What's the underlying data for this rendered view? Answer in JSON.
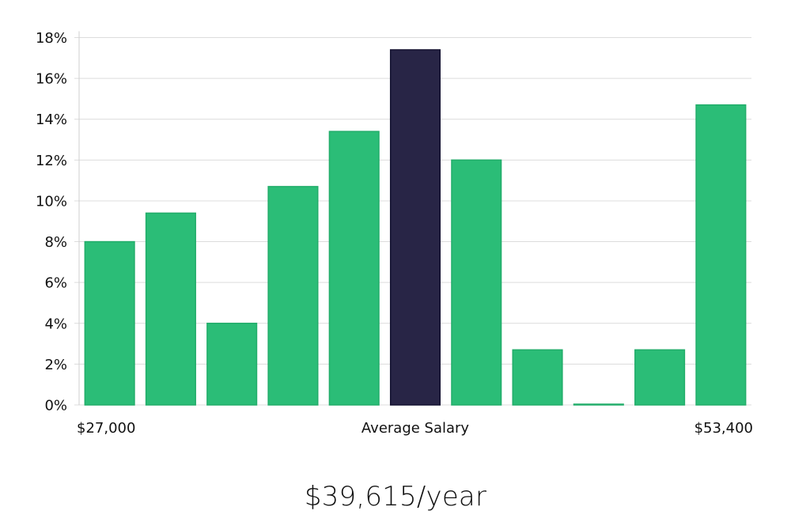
{
  "headline": "$39,615/year",
  "colors": {
    "bar": "#2bbd77",
    "bar_stroke": "#22ad6a",
    "highlight": "#282546",
    "highlight_stroke": "#141230"
  },
  "chart_data": {
    "type": "bar",
    "values": [
      8.0,
      9.4,
      4.0,
      10.7,
      13.4,
      17.4,
      12.0,
      2.7,
      0.0,
      2.7,
      14.7
    ],
    "highlight_index": 5,
    "ylim": [
      0,
      18
    ],
    "yticks": [
      0,
      2,
      4,
      6,
      8,
      10,
      12,
      14,
      16,
      18
    ],
    "y_tick_suffix": "%",
    "grid": true,
    "x_labels": {
      "left": "$27,000",
      "center": "Average Salary",
      "right": "$53,400"
    }
  }
}
